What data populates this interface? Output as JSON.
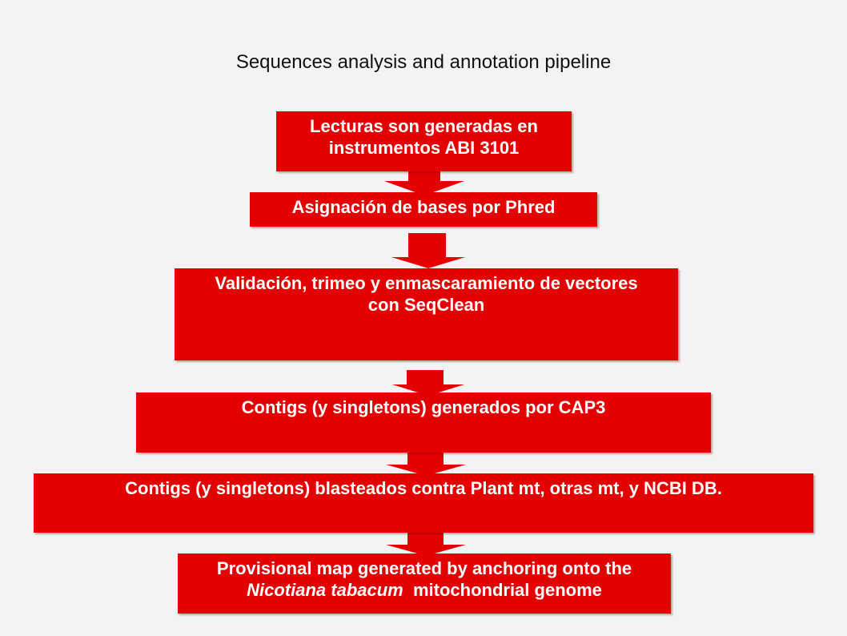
{
  "title": "Sequences analysis and annotation pipeline",
  "colors": {
    "box_fill": "#e30000",
    "arrow_fill": "#e30000",
    "text": "#ffffff",
    "background": "#f3f3f3"
  },
  "steps": [
    {
      "line1": "Lecturas son generadas en",
      "line2": "instrumentos ABI 3101"
    },
    {
      "line1": "Asignación de bases por Phred"
    },
    {
      "line1": "Validación, trimeo y enmascaramiento de vectores",
      "line2": "con SeqClean"
    },
    {
      "line1": "Contigs (y singletons) generados por CAP3"
    },
    {
      "line1": "Contigs (y singletons) blasteados contra Plant mt, otras mt, y  NCBI DB."
    },
    {
      "line1": "Provisional map generated by anchoring onto the",
      "line2_italic": "Nicotiana tabacum",
      "line2_rest": "  mitochondrial genome"
    }
  ]
}
